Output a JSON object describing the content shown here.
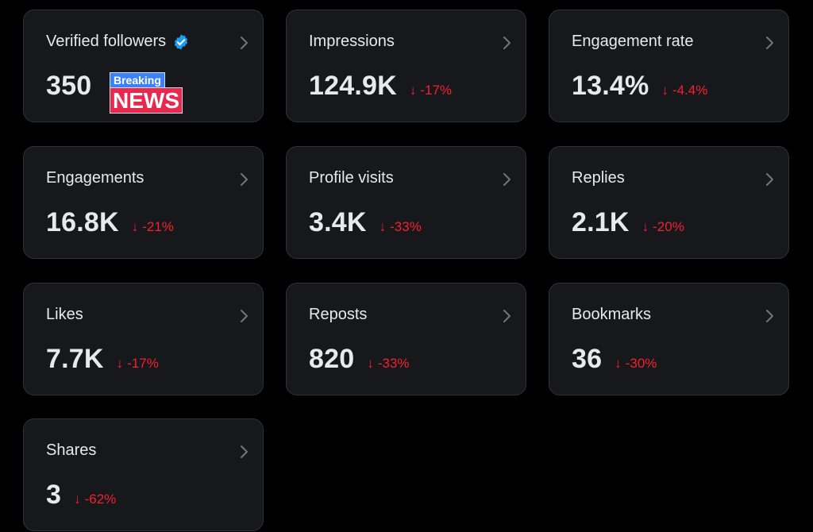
{
  "colors": {
    "background": "#000000",
    "card_bg": "#16181c",
    "card_border": "#2f3336",
    "text": "#e7e9ea",
    "negative_delta": "#f4212e",
    "verified_blue": "#1d9bf0",
    "sticker_blue": "#3b82f6",
    "sticker_red": "#e8294f"
  },
  "cards": {
    "verified_followers": {
      "title": "Verified followers",
      "value": "350",
      "badge_icon": "verified-badge-icon"
    },
    "impressions": {
      "title": "Impressions",
      "value": "124.9K",
      "delta": "-17%"
    },
    "engagement_rate": {
      "title": "Engagement rate",
      "value": "13.4%",
      "delta": "-4.4%"
    },
    "engagements": {
      "title": "Engagements",
      "value": "16.8K",
      "delta": "-21%"
    },
    "profile_visits": {
      "title": "Profile visits",
      "value": "3.4K",
      "delta": "-33%"
    },
    "replies": {
      "title": "Replies",
      "value": "2.1K",
      "delta": "-20%"
    },
    "likes": {
      "title": "Likes",
      "value": "7.7K",
      "delta": "-17%"
    },
    "reposts": {
      "title": "Reposts",
      "value": "820",
      "delta": "-33%"
    },
    "bookmarks": {
      "title": "Bookmarks",
      "value": "36",
      "delta": "-30%"
    },
    "shares": {
      "title": "Shares",
      "value": "3",
      "delta": "-62%"
    }
  },
  "sticker": {
    "top": "Breaking",
    "bottom": "NEWS"
  },
  "icons": {
    "chevron": "chevron-right-icon",
    "down_arrow": "arrow-down-icon"
  }
}
